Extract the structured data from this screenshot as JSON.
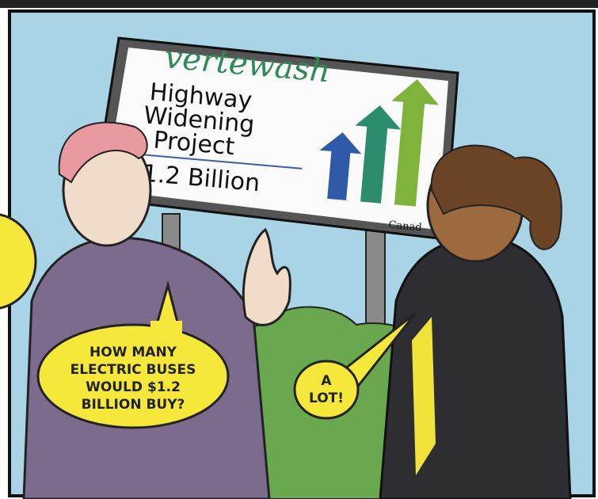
{
  "billboard": {
    "brand": "vertewash",
    "title_lines": [
      "Highway",
      "Widening",
      "Project"
    ],
    "price": "1.2 Billion",
    "sponsor": "Canad"
  },
  "bubbles": [
    {
      "lines": [
        "HOW MANY",
        "ELECTRIC BUSES",
        "WOULD $1.2",
        "BILLION BUY?"
      ]
    },
    {
      "lines": [
        "A",
        "LOT!"
      ]
    }
  ]
}
